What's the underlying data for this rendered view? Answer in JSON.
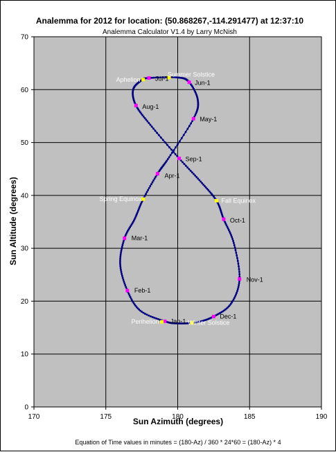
{
  "chart_data": {
    "type": "scatter",
    "title": "Analemma for 2012 for location: (50.868267,-114.291477) at 12:37:10",
    "subtitle": "Analemma Calculator V1.4 by Larry McNish",
    "xlabel": "Sun Azimuth (degrees)",
    "ylabel": "Sun Altitude (degrees)",
    "footnote": "Equation of Time values in minutes = (180-Az) / 360 * 24*60 = (180-Az) * 4",
    "xlim": [
      170,
      190
    ],
    "ylim": [
      0,
      70
    ],
    "xticks": [
      170,
      175,
      180,
      185,
      190
    ],
    "yticks": [
      0,
      10,
      20,
      30,
      40,
      50,
      60,
      70
    ],
    "grid": true,
    "legend": "none",
    "colors": {
      "plot_area": "#c0c0c0",
      "grid": "#000000",
      "series": "#000080",
      "month_marker": "#ff00ff",
      "event_marker": "#ffff00",
      "event_label": "#ffffff",
      "month_label": "#000000"
    },
    "series": [
      {
        "name": "",
        "anchors": [
          {
            "x": 179.1,
            "y": 16.2
          },
          {
            "x": 177.4,
            "y": 18.2
          },
          {
            "x": 176.5,
            "y": 22.0
          },
          {
            "x": 176.0,
            "y": 27.0
          },
          {
            "x": 176.3,
            "y": 31.9
          },
          {
            "x": 177.0,
            "y": 35.5
          },
          {
            "x": 177.6,
            "y": 39.3
          },
          {
            "x": 178.6,
            "y": 44.1
          },
          {
            "x": 179.4,
            "y": 47.2
          },
          {
            "x": 181.1,
            "y": 54.5
          },
          {
            "x": 181.4,
            "y": 58.0
          },
          {
            "x": 180.8,
            "y": 61.4
          },
          {
            "x": 180.0,
            "y": 62.3
          },
          {
            "x": 178.0,
            "y": 62.2
          },
          {
            "x": 177.5,
            "y": 61.8
          },
          {
            "x": 176.9,
            "y": 60.0
          },
          {
            "x": 177.1,
            "y": 57.0
          },
          {
            "x": 178.2,
            "y": 53.0
          },
          {
            "x": 180.1,
            "y": 47.0
          },
          {
            "x": 181.6,
            "y": 42.6
          },
          {
            "x": 182.7,
            "y": 39.0
          },
          {
            "x": 183.2,
            "y": 35.5
          },
          {
            "x": 183.9,
            "y": 31.0
          },
          {
            "x": 184.3,
            "y": 24.2
          },
          {
            "x": 183.7,
            "y": 19.5
          },
          {
            "x": 182.5,
            "y": 17.1
          },
          {
            "x": 181.3,
            "y": 16.0
          },
          {
            "x": 180.0,
            "y": 15.8
          },
          {
            "x": 179.1,
            "y": 16.2
          }
        ]
      }
    ],
    "month_points": [
      {
        "label": "Jan-1",
        "x": 179.1,
        "y": 16.2
      },
      {
        "label": "Feb-1",
        "x": 176.5,
        "y": 22.0
      },
      {
        "label": "Mar-1",
        "x": 176.3,
        "y": 31.9
      },
      {
        "label": "Apr-1",
        "x": 178.6,
        "y": 44.1
      },
      {
        "label": "May-1",
        "x": 181.1,
        "y": 54.5
      },
      {
        "label": "Jun-1",
        "x": 180.8,
        "y": 61.4
      },
      {
        "label": "Jul-1",
        "x": 178.0,
        "y": 62.2
      },
      {
        "label": "Aug-1",
        "x": 177.1,
        "y": 57.0
      },
      {
        "label": "Sep-1",
        "x": 180.1,
        "y": 47.0
      },
      {
        "label": "Oct-1",
        "x": 183.2,
        "y": 35.5
      },
      {
        "label": "Nov-1",
        "x": 184.3,
        "y": 24.2
      },
      {
        "label": "Dec-1",
        "x": 182.5,
        "y": 17.1
      }
    ],
    "events": [
      {
        "label": "Perihelion",
        "x": 178.9,
        "y": 16.1
      },
      {
        "label": "Winter Solstice",
        "x": 181.0,
        "y": 15.9
      },
      {
        "label": "Spring Equinox",
        "x": 177.6,
        "y": 39.3
      },
      {
        "label": "Fall Equinox",
        "x": 182.7,
        "y": 39.0
      },
      {
        "label": "Aphelion",
        "x": 177.6,
        "y": 61.9
      },
      {
        "label": "Summer Solstice",
        "x": 179.4,
        "y": 62.3
      }
    ]
  }
}
